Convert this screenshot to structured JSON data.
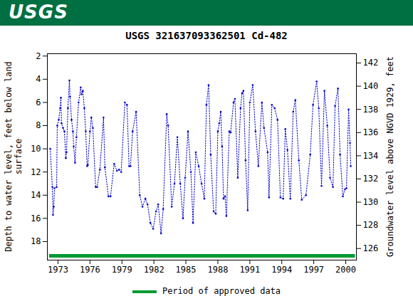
{
  "chart_data": {
    "type": "line",
    "header": "USGS",
    "title": "USGS 321637093362501 Cd-482",
    "ylabel": "Depth to water level, feet below land surface",
    "y2label": "Groundwater level above NGVD 1929, feet",
    "x": [
      1972.27,
      1972.47,
      1972.53,
      1972.6,
      1972.67,
      1972.87,
      1972.93,
      1973.07,
      1973.2,
      1973.27,
      1973.33,
      1973.47,
      1973.6,
      1973.73,
      1973.8,
      1973.93,
      1974.07,
      1974.13,
      1974.27,
      1974.4,
      1974.47,
      1974.6,
      1974.73,
      1974.93,
      1975.13,
      1975.2,
      1975.33,
      1975.47,
      1975.6,
      1975.73,
      1975.8,
      1976.0,
      1976.13,
      1976.27,
      1976.53,
      1976.67,
      1976.93,
      1977.27,
      1977.4,
      1977.73,
      1977.93,
      1978.27,
      1978.53,
      1978.73,
      1978.93,
      1979.27,
      1979.47,
      1979.67,
      1979.8,
      1980.0,
      1980.33,
      1980.67,
      1980.93,
      1981.2,
      1981.4,
      1981.67,
      1981.93,
      1982.2,
      1982.4,
      1982.67,
      1982.87,
      1983.2,
      1983.33,
      1983.67,
      1983.93,
      1984.2,
      1984.47,
      1984.73,
      1984.93,
      1985.2,
      1985.47,
      1985.67,
      1985.93,
      1986.2,
      1986.47,
      1986.73,
      1986.93,
      1987.13,
      1987.33,
      1987.6,
      1987.8,
      1988.0,
      1988.13,
      1988.27,
      1988.4,
      1988.53,
      1988.67,
      1988.8,
      1989.07,
      1989.2,
      1989.47,
      1989.6,
      1989.87,
      1990.13,
      1990.27,
      1990.4,
      1990.6,
      1990.8,
      1991.0,
      1991.27,
      1991.53,
      1991.8,
      1992.13,
      1992.33,
      1992.67,
      1992.8,
      1993.07,
      1993.33,
      1993.6,
      1993.87,
      1994.13,
      1994.33,
      1994.53,
      1994.8,
      1995.07,
      1995.27,
      1995.6,
      1995.87,
      1996.27,
      1996.67,
      1996.93,
      1997.27,
      1997.47,
      1997.73,
      1998.0,
      1998.27,
      1998.53,
      1998.8,
      1999.0,
      1999.27,
      1999.47,
      1999.73,
      1999.93,
      2000.07,
      2000.27,
      2000.4,
      2000.47
    ],
    "values": [
      10,
      13.3,
      15.7,
      15,
      13.4,
      13.3,
      8,
      7.5,
      6.5,
      5.6,
      7.8,
      8.2,
      8.5,
      10.8,
      10.3,
      6.5,
      4.1,
      5.5,
      7.5,
      8.5,
      9.8,
      11.2,
      9,
      6,
      4.7,
      5.3,
      5,
      6.5,
      8.5,
      11.5,
      11.4,
      8.5,
      7.3,
      8.2,
      13.3,
      13.3,
      11.8,
      7.3,
      11.6,
      14.1,
      14.1,
      11.3,
      11.9,
      11.8,
      12,
      6,
      6.2,
      11.5,
      11.5,
      8.5,
      6.8,
      14,
      15,
      14.3,
      14.8,
      16.4,
      16.9,
      15.4,
      14.8,
      17.3,
      15.2,
      7,
      8,
      15,
      13,
      9,
      13,
      16,
      12.5,
      8.5,
      12,
      16.4,
      10.3,
      11.5,
      13,
      14.3,
      6.2,
      4.5,
      10.5,
      15.4,
      15.6,
      8.5,
      7.8,
      6.8,
      9.8,
      14.3,
      14.1,
      15.8,
      8.5,
      8.6,
      6,
      5.7,
      12.5,
      6.5,
      5.2,
      5,
      11,
      15.3,
      6,
      4.5,
      8.5,
      11.5,
      6,
      8.2,
      10.3,
      14.2,
      6.2,
      6.5,
      7.5,
      14.2,
      14.3,
      8.3,
      10.1,
      14.3,
      6.8,
      5.8,
      11,
      14.4,
      14,
      10.5,
      6.2,
      4.2,
      6.5,
      13.2,
      5,
      8,
      12.5,
      13.3,
      6.3,
      4.8,
      10.5,
      14.1,
      13.5,
      13.4,
      6.6,
      9.5,
      11.5
    ],
    "color": "#0000cc",
    "marker": "dot",
    "line_style": "dotted",
    "xlim": [
      1972.0,
      2001.0
    ],
    "xticks": [
      1973,
      1976,
      1979,
      1982,
      1985,
      1988,
      1991,
      1994,
      1997,
      2000
    ],
    "ylim": [
      19.6,
      1.8
    ],
    "yticks": [
      2,
      4,
      6,
      8,
      10,
      12,
      14,
      16,
      18
    ],
    "y2lim": [
      125,
      142.8
    ],
    "y2ticks": [
      126,
      128,
      130,
      132,
      134,
      136,
      138,
      140,
      142
    ],
    "grid": false,
    "legend": "bottom",
    "approved_period": {
      "label": "Period of approved data",
      "x": [
        1972.2,
        2000.9
      ],
      "color": "#009933"
    }
  }
}
